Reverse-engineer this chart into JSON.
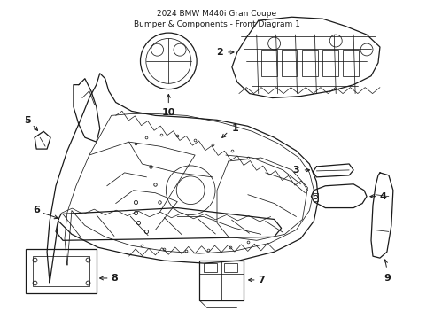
{
  "title": "2024 BMW M440i Gran Coupe\nBumper & Components - Front Diagram 1",
  "title_fontsize": 6.5,
  "bg_color": "#ffffff",
  "line_color": "#1a1a1a",
  "lw_main": 0.9,
  "lw_detail": 0.55,
  "label_fontsize": 8,
  "fig_w": 4.9,
  "fig_h": 3.6,
  "dpi": 100
}
